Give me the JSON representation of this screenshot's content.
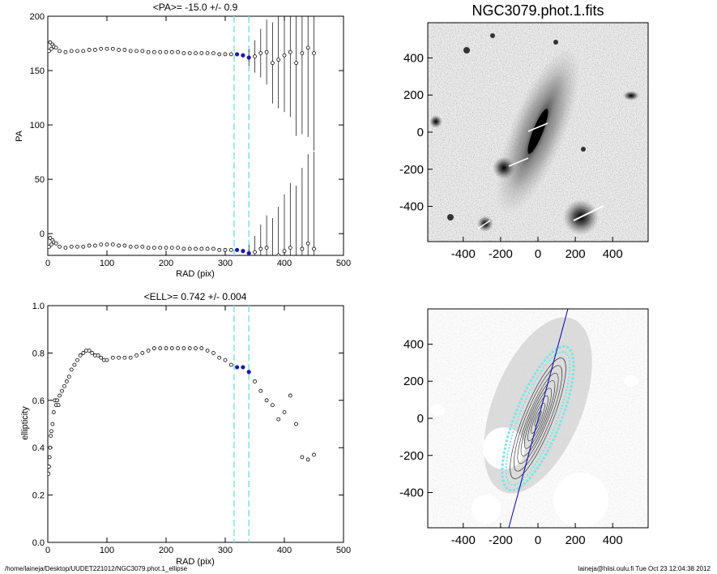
{
  "chart_data": [
    {
      "type": "scatter",
      "title": "<PA>= -15.0 +/-   0.9",
      "xlabel": "RAD (pix)",
      "ylabel": "PA",
      "xlim": [
        0,
        500
      ],
      "ylim": [
        -20,
        200
      ],
      "xticks": [
        "0",
        "100",
        "200",
        "300",
        "400",
        "500"
      ],
      "yticks": [
        "0",
        "50",
        "100",
        "150",
        "200"
      ],
      "fit_range": [
        315,
        340
      ],
      "series": [
        {
          "name": "PA",
          "x": [
            2,
            4,
            6,
            8,
            10,
            14,
            20,
            30,
            40,
            50,
            60,
            70,
            80,
            90,
            100,
            110,
            120,
            130,
            140,
            150,
            160,
            170,
            180,
            190,
            200,
            210,
            220,
            230,
            240,
            250,
            260,
            270,
            280,
            290,
            300,
            310,
            320,
            330,
            340,
            350,
            360,
            370,
            380,
            390,
            400,
            410,
            420,
            430,
            440,
            450
          ],
          "y": [
            168,
            176,
            170,
            174,
            172,
            171,
            168,
            167,
            168,
            168,
            168,
            169,
            169,
            170,
            170,
            170,
            169,
            169,
            168,
            168,
            168,
            167,
            167,
            167,
            167,
            167,
            167,
            166,
            166,
            166,
            166,
            166,
            166,
            165,
            165,
            165,
            165,
            164,
            162,
            163,
            166,
            167,
            157,
            160,
            164,
            167,
            157,
            166,
            171,
            166
          ]
        },
        {
          "name": "PA-180",
          "x": [
            2,
            4,
            6,
            8,
            10,
            14,
            20,
            30,
            40,
            50,
            60,
            70,
            80,
            90,
            100,
            110,
            120,
            130,
            140,
            150,
            160,
            170,
            180,
            190,
            200,
            210,
            220,
            230,
            240,
            250,
            260,
            270,
            280,
            290,
            300,
            310,
            320,
            330,
            340,
            350,
            360,
            370,
            380,
            390,
            400,
            410,
            420,
            430,
            440,
            450
          ],
          "y": [
            -12,
            -4,
            -10,
            -6,
            -8,
            -9,
            -12,
            -13,
            -12,
            -12,
            -12,
            -11,
            -11,
            -10,
            -10,
            -10,
            -11,
            -11,
            -12,
            -12,
            -12,
            -13,
            -13,
            -13,
            -13,
            -13,
            -13,
            -14,
            -14,
            -14,
            -14,
            -14,
            -14,
            -15,
            -15,
            -15,
            -15,
            -16,
            -18,
            -17,
            -14,
            -13,
            -23,
            -20,
            -16,
            -13,
            -23,
            -14,
            -9,
            -14
          ]
        }
      ]
    },
    {
      "type": "scatter",
      "title": "<ELL>= 0.742 +/-  0.004",
      "xlabel": "RAD (pix)",
      "ylabel": "ellipticity",
      "xlim": [
        0,
        500
      ],
      "ylim": [
        0.0,
        1.0
      ],
      "xticks": [
        "0",
        "100",
        "200",
        "300",
        "400",
        "500"
      ],
      "yticks": [
        "0.0",
        "0.2",
        "0.4",
        "0.6",
        "0.8",
        "1.0"
      ],
      "fit_range": [
        315,
        340
      ],
      "series": [
        {
          "name": "ellipticity",
          "x": [
            1,
            2,
            3,
            4,
            5,
            6,
            8,
            10,
            12,
            14,
            16,
            18,
            20,
            24,
            28,
            32,
            36,
            40,
            45,
            50,
            55,
            60,
            65,
            70,
            75,
            80,
            85,
            90,
            95,
            100,
            110,
            120,
            130,
            140,
            150,
            160,
            170,
            180,
            190,
            200,
            210,
            220,
            230,
            240,
            250,
            260,
            270,
            280,
            290,
            300,
            310,
            320,
            330,
            340,
            350,
            360,
            370,
            380,
            390,
            400,
            410,
            420,
            430,
            440,
            450
          ],
          "y": [
            0.29,
            0.32,
            0.36,
            0.4,
            0.45,
            0.47,
            0.5,
            0.55,
            0.6,
            0.58,
            0.6,
            0.58,
            0.62,
            0.64,
            0.66,
            0.68,
            0.7,
            0.73,
            0.75,
            0.77,
            0.79,
            0.8,
            0.81,
            0.81,
            0.8,
            0.79,
            0.79,
            0.78,
            0.77,
            0.77,
            0.78,
            0.78,
            0.78,
            0.78,
            0.79,
            0.8,
            0.81,
            0.82,
            0.82,
            0.82,
            0.82,
            0.82,
            0.82,
            0.82,
            0.82,
            0.82,
            0.81,
            0.8,
            0.78,
            0.77,
            0.75,
            0.74,
            0.74,
            0.72,
            0.68,
            0.64,
            0.6,
            0.58,
            0.52,
            0.55,
            0.62,
            0.5,
            0.36,
            0.35,
            0.37
          ]
        }
      ]
    },
    {
      "type": "heatmap",
      "title": "NGC3079.phot.1.fits",
      "xticks": [
        "-400",
        "-200",
        "0",
        "200",
        "400"
      ],
      "yticks": [
        "400",
        "200",
        "0",
        "-200",
        "-400"
      ],
      "xlim": [
        -590,
        590
      ],
      "ylim": [
        -590,
        590
      ]
    },
    {
      "type": "heatmap",
      "title": "",
      "xticks": [
        "-400",
        "-200",
        "0",
        "200",
        "400"
      ],
      "yticks": [
        "400",
        "200",
        "0",
        "-200",
        "-400"
      ],
      "xlim": [
        -590,
        590
      ],
      "ylim": [
        -590,
        590
      ]
    }
  ],
  "footer": {
    "path": "/home/laineja/Desktop/UUDET221012/NGC3079.phot.1_ellipse",
    "user_date": "laineja@hiisi.oulu.fi  Tue Oct 23 12:04:38 2012"
  },
  "colors": {
    "fit_line": "#7fe3e3",
    "fit_points": "#1a1aa8",
    "axis_line": "#0000aa"
  }
}
